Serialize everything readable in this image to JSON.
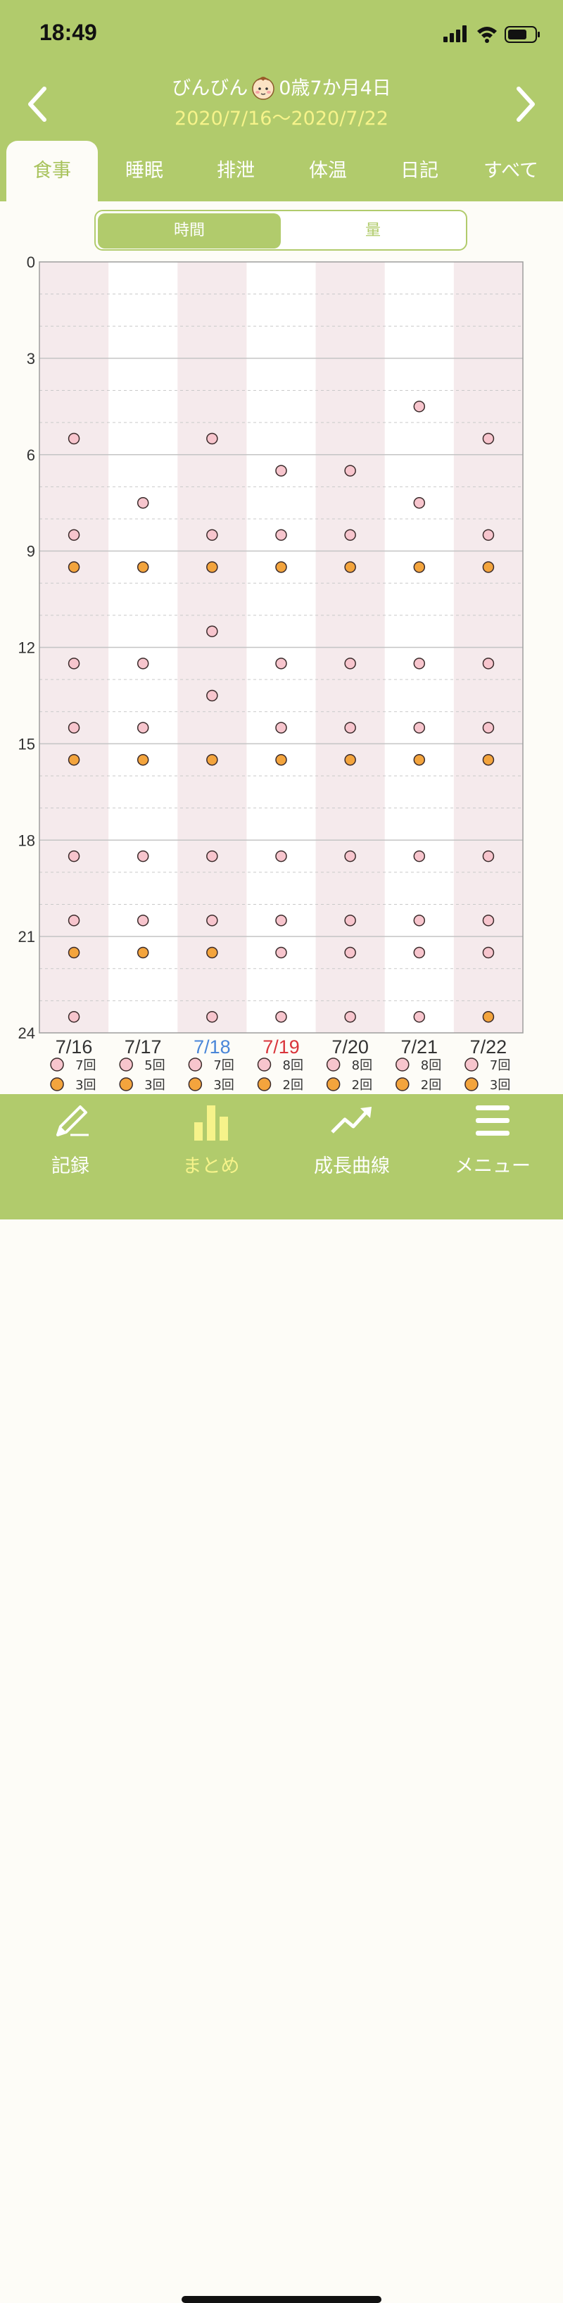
{
  "status_bar": {
    "time": "18:49"
  },
  "header": {
    "child_name": "びんびん",
    "child_age": "0歳7か月4日",
    "date_range": "2020/7/16〜2020/7/22",
    "prev_icon": "chevron-left-icon",
    "next_icon": "chevron-right-icon",
    "baby_icon": "baby-face-icon"
  },
  "tabs": [
    {
      "label": "食事",
      "active": true
    },
    {
      "label": "睡眠",
      "active": false
    },
    {
      "label": "排泄",
      "active": false
    },
    {
      "label": "体温",
      "active": false
    },
    {
      "label": "日記",
      "active": false
    },
    {
      "label": "すべて",
      "active": false
    }
  ],
  "segment": {
    "selected": "時間",
    "other": "量"
  },
  "colors": {
    "brand_green": "#b1cb6c",
    "date_yellow": "#f6f38a",
    "pink_dot": "#f7c5cd",
    "orange_dot": "#f3a43d",
    "stripe": "#f5eaec",
    "saturday_blue": "#4a86d8",
    "sunday_red": "#d9353b"
  },
  "chart_data": {
    "type": "scatter",
    "y_axis": {
      "ticks": [
        "0",
        "3",
        "6",
        "9",
        "12",
        "15",
        "18",
        "21",
        "24"
      ],
      "range": [
        0,
        24
      ],
      "unit": "hour",
      "inverted": true
    },
    "days": [
      {
        "label": "7/16",
        "weekday": "normal",
        "pink": [
          5.5,
          8.5,
          12.5,
          14.5,
          18.5,
          20.5,
          23.5
        ],
        "orange": [
          9.5,
          15.5,
          21.5
        ],
        "pink_count": "7回",
        "orange_count": "3回"
      },
      {
        "label": "7/17",
        "weekday": "normal",
        "pink": [
          7.5,
          12.5,
          14.5,
          18.5,
          20.5
        ],
        "orange": [
          9.5,
          15.5,
          21.5
        ],
        "pink_count": "5回",
        "orange_count": "3回"
      },
      {
        "label": "7/18",
        "weekday": "saturday",
        "pink": [
          5.5,
          8.5,
          11.5,
          13.5,
          18.5,
          20.5,
          23.5
        ],
        "orange": [
          9.5,
          15.5,
          21.5
        ],
        "pink_count": "7回",
        "orange_count": "3回"
      },
      {
        "label": "7/19",
        "weekday": "sunday",
        "pink": [
          6.5,
          8.5,
          12.5,
          14.5,
          18.5,
          20.5,
          21.5,
          23.5
        ],
        "orange": [
          9.5,
          15.5
        ],
        "pink_count": "8回",
        "orange_count": "2回"
      },
      {
        "label": "7/20",
        "weekday": "normal",
        "pink": [
          6.5,
          8.5,
          12.5,
          14.5,
          18.5,
          20.5,
          21.5,
          23.5
        ],
        "orange": [
          9.5,
          15.5
        ],
        "pink_count": "8回",
        "orange_count": "2回"
      },
      {
        "label": "7/21",
        "weekday": "normal",
        "pink": [
          4.5,
          7.5,
          12.5,
          14.5,
          18.5,
          20.5,
          21.5,
          23.5
        ],
        "orange": [
          9.5,
          15.5
        ],
        "pink_count": "8回",
        "orange_count": "2回"
      },
      {
        "label": "7/22",
        "weekday": "normal",
        "pink": [
          5.5,
          8.5,
          12.5,
          14.5,
          18.5,
          20.5,
          21.5
        ],
        "orange": [
          9.5,
          15.5,
          23.5
        ],
        "pink_count": "7回",
        "orange_count": "3回"
      }
    ]
  },
  "bottom_nav": [
    {
      "label": "記録",
      "icon": "pencil-icon",
      "active": false
    },
    {
      "label": "まとめ",
      "icon": "bar-chart-icon",
      "active": true
    },
    {
      "label": "成長曲線",
      "icon": "trend-up-icon",
      "active": false
    },
    {
      "label": "メニュー",
      "icon": "menu-icon",
      "active": false
    }
  ]
}
